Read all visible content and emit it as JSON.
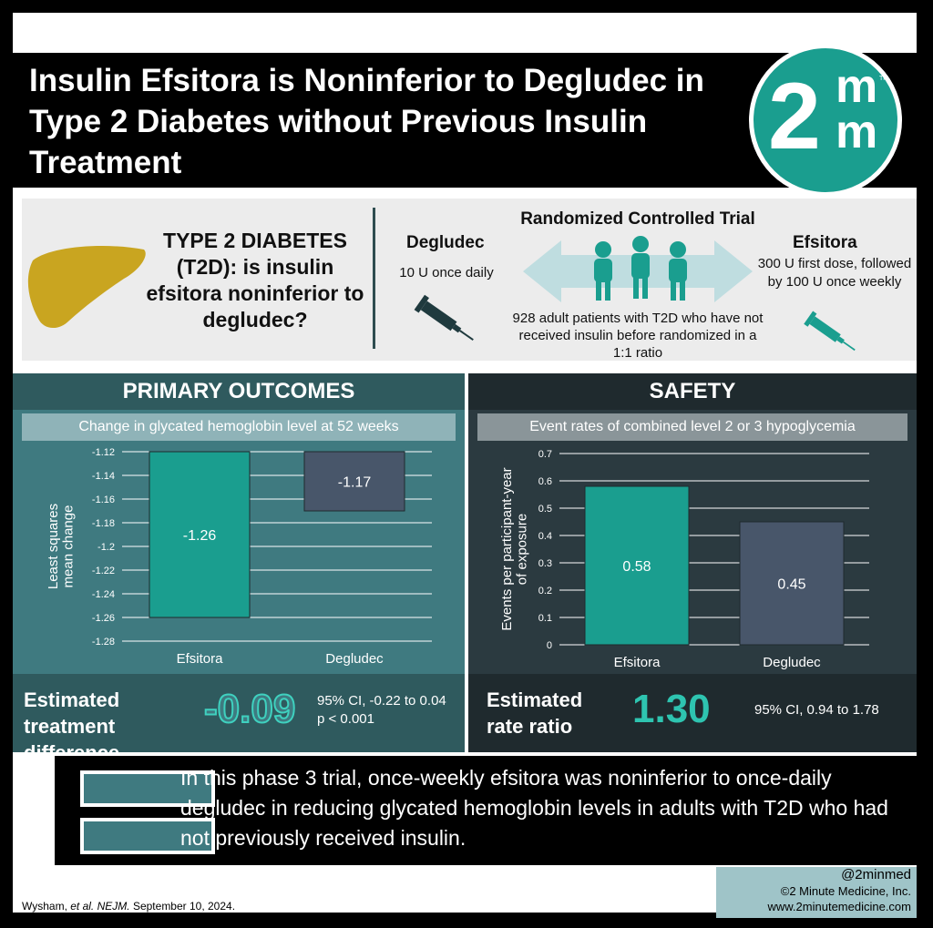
{
  "header": {
    "title": "Insulin Efsitora is Noninferior to Degludec in Type 2 Diabetes without Previous Insulin Treatment",
    "logo": {
      "numeral": "2",
      "letter_top": "m",
      "letter_bottom": "m",
      "trademark": "TM"
    }
  },
  "trial": {
    "question": "TYPE 2 DIABETES (T2D): is insulin efsitora noninferior to degludec?",
    "design_title": "Randomized Controlled Trial",
    "population": "928 adult patients with T2D who have not received insulin before randomized in a 1:1 ratio",
    "arm_left": {
      "name": "Degludec",
      "dose": "10 U once daily"
    },
    "arm_right": {
      "name": "Efsitora",
      "dose": "300 U first dose, followed by 100 U once weekly"
    }
  },
  "primary": {
    "heading": "PRIMARY OUTCOMES",
    "subheading": "Change in glycated hemoglobin level at 52 weeks",
    "stat_label": "Estimated treatment difference",
    "stat_value": "-0.09",
    "ci": "95% CI, -0.22 to 0.04",
    "p": "p < 0.001"
  },
  "safety": {
    "heading": "SAFETY",
    "subheading": "Event rates of combined level 2 or 3 hypoglycemia",
    "stat_label": "Estimated rate ratio",
    "stat_value": "1.30",
    "ci": "95% CI, 0.94 to 1.78"
  },
  "chart_data": [
    {
      "type": "bar",
      "categories": [
        "Efsitora",
        "Degludec"
      ],
      "values": [
        -1.26,
        -1.17
      ],
      "data_labels": [
        "-1.26",
        "-1.17"
      ],
      "ylabel": "Least squares mean change",
      "ylim": [
        -1.28,
        -1.12
      ],
      "yticks": [
        "-1.12",
        "-1.14",
        "-1.16",
        "-1.18",
        "-1.2",
        "-1.22",
        "-1.24",
        "-1.26",
        "-1.28"
      ],
      "colors": [
        "#1a9e8f",
        "#48566a"
      ],
      "grid": true
    },
    {
      "type": "bar",
      "categories": [
        "Efsitora",
        "Degludec"
      ],
      "values": [
        0.58,
        0.45
      ],
      "data_labels": [
        "0.58",
        "0.45"
      ],
      "ylabel": "Events per participant-year of exposure",
      "ylim": [
        0,
        0.7
      ],
      "yticks": [
        "0.7",
        "0.6",
        "0.5",
        "0.4",
        "0.3",
        "0.2",
        "0.1",
        "0"
      ],
      "colors": [
        "#1a9e8f",
        "#48566a"
      ],
      "grid": true
    }
  ],
  "conclusion": "In this phase 3 trial, once-weekly efsitora was noninferior to once-daily degludec in reducing glycated hemoglobin levels in adults with T2D who had not previously received insulin.",
  "footer": {
    "citation_authors": "Wysham,",
    "citation_etal": "et al.",
    "citation_journal": "NEJM.",
    "citation_date": "September 10, 2024.",
    "handle": "@2minmed",
    "copyright": "©2 Minute Medicine, Inc.",
    "website": "www.2minutemedicine.com"
  },
  "colors": {
    "teal": "#1a9e8f",
    "slate": "#48566a",
    "panel_teal": "#3f7a80",
    "panel_dark": "#2b3a40"
  },
  "icons": [
    "liver-icon",
    "syringe-icon",
    "people-icon",
    "double-arrow-icon"
  ]
}
